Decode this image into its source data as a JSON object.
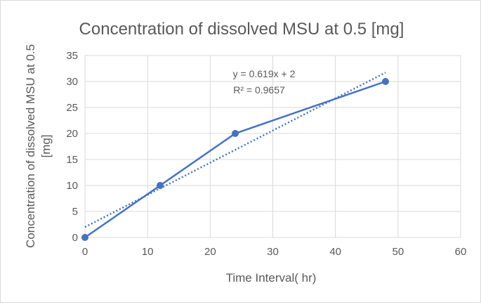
{
  "chart_data": {
    "type": "scatter",
    "title": "Concentration of dissolved MSU at 0.5 [mg]",
    "xlabel": "Time Interval( hr)",
    "ylabel_lines": [
      "Concentration of dissolved MSU at 0.5",
      "[mg]"
    ],
    "xlim": [
      0,
      60
    ],
    "ylim": [
      0,
      35
    ],
    "xticks": [
      0,
      10,
      20,
      30,
      40,
      50,
      60
    ],
    "yticks": [
      0,
      5,
      10,
      15,
      20,
      25,
      30,
      35
    ],
    "grid": true,
    "series": [
      {
        "name": "Concentration",
        "x": [
          0,
          12,
          24,
          48
        ],
        "y": [
          0,
          10,
          20,
          30
        ],
        "color": "#4472c4",
        "line": "solid",
        "markers": true
      }
    ],
    "trendline": {
      "type": "linear",
      "slope": 0.619,
      "intercept": 2,
      "x_range": [
        0,
        48
      ],
      "color": "#4472c4",
      "style": "dotted",
      "equation": "y = 0.619x + 2",
      "r_squared": "R² = 0.9657"
    }
  }
}
